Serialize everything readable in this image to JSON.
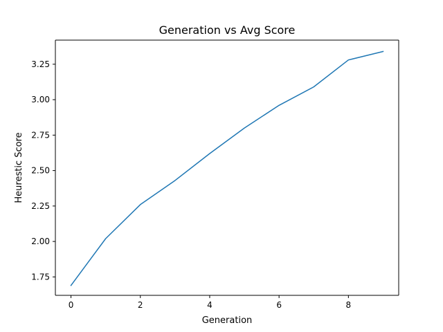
{
  "chart_data": {
    "type": "line",
    "title": "Generation vs Avg Score",
    "xlabel": "Generation",
    "ylabel": "Heurestic Score",
    "xlim": [
      -0.45,
      9.45
    ],
    "ylim": [
      1.62,
      3.42
    ],
    "xticks": [
      0,
      2,
      4,
      6,
      8
    ],
    "xtick_labels": [
      "0",
      "2",
      "4",
      "6",
      "8"
    ],
    "yticks": [
      1.75,
      2.0,
      2.25,
      2.5,
      2.75,
      3.0,
      3.25
    ],
    "ytick_labels": [
      "1.75",
      "2.00",
      "2.25",
      "2.50",
      "2.75",
      "3.00",
      "3.25"
    ],
    "grid": false,
    "series": [
      {
        "color": "#1f77b4",
        "x": [
          0,
          1,
          2,
          3,
          4,
          5,
          6,
          7,
          8,
          9
        ],
        "y": [
          1.69,
          2.02,
          2.26,
          2.43,
          2.62,
          2.8,
          2.96,
          3.09,
          3.28,
          3.34
        ]
      }
    ]
  }
}
